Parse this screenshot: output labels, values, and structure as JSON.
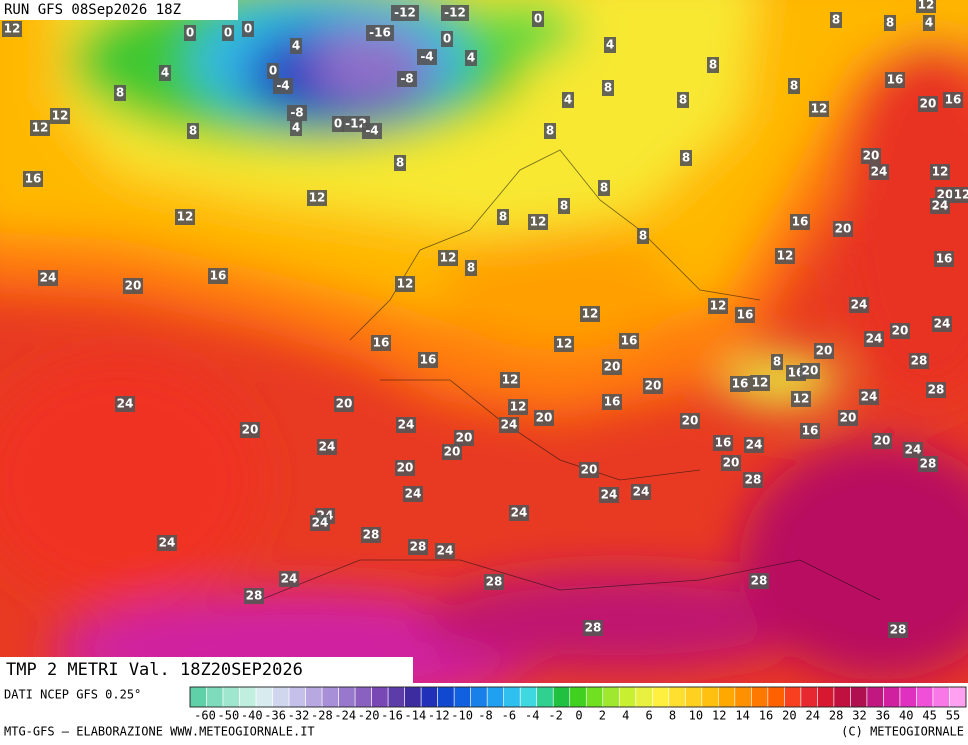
{
  "header": {
    "run": "RUN GFS 08Sep2026 18Z"
  },
  "map": {
    "labels": [
      12,
      0,
      0,
      0,
      4,
      4,
      0,
      -4,
      8,
      12,
      12,
      8,
      -8,
      4,
      0,
      -12,
      -4,
      -12,
      -12,
      -16,
      0,
      -4,
      -8,
      4,
      0,
      4,
      4,
      8,
      8,
      8,
      8,
      8,
      8,
      4,
      12,
      16,
      12,
      20,
      16,
      8,
      8,
      8,
      16,
      20,
      24,
      12,
      20,
      12,
      24,
      12,
      12,
      8,
      8,
      12,
      8,
      8,
      16,
      20,
      12,
      8,
      12,
      16,
      24,
      20,
      16,
      12,
      12,
      12,
      16,
      24,
      20,
      24,
      24,
      16,
      16,
      12,
      16,
      20,
      28,
      8,
      20,
      16,
      12,
      16,
      20,
      12,
      20,
      28,
      24,
      24,
      20,
      12,
      16,
      12,
      20,
      20,
      20,
      24,
      24,
      20,
      16,
      24,
      20,
      20,
      16,
      24,
      20,
      24,
      28,
      20,
      20,
      20,
      28,
      24,
      24,
      24,
      24,
      24,
      24,
      28,
      24,
      28,
      24,
      24,
      28,
      28,
      28,
      28,
      28
    ]
  },
  "footer": {
    "title": "TMP 2 METRI Val. 18Z20SEP2026",
    "source": "DATI NCEP GFS 0.25°",
    "credit": "MTG-GFS — ELABORAZIONE WWW.METEOGIORNALE.IT",
    "copyright": "(C) METEOGIORNALE"
  },
  "legend": {
    "ticks": [
      -60,
      -50,
      -40,
      -36,
      -32,
      -28,
      -24,
      -20,
      -16,
      -14,
      -12,
      -10,
      -8,
      -6,
      -4,
      -2,
      0,
      2,
      4,
      6,
      8,
      10,
      12,
      14,
      16,
      20,
      24,
      28,
      32,
      36,
      40,
      45,
      55
    ],
    "colors": [
      "#5fd0a8",
      "#7edcbc",
      "#9fe6cf",
      "#c0efe0",
      "#d8ecf0",
      "#d0d6ee",
      "#c4c0ea",
      "#b8a8e2",
      "#a890d8",
      "#9878cc",
      "#8a60c0",
      "#7a48b4",
      "#5c3ca8",
      "#3c2ca0",
      "#2030b8",
      "#1048d0",
      "#1060e0",
      "#1880e8",
      "#20a0f0",
      "#30c0f0",
      "#40d8e0",
      "#30d090",
      "#20c040",
      "#40d020",
      "#70e020",
      "#a0e830",
      "#c8f030",
      "#e8f040",
      "#fff040",
      "#ffe030",
      "#ffd020",
      "#ffc010",
      "#ffa800",
      "#ff9000",
      "#ff7800",
      "#ff6000",
      "#f84020",
      "#e82830",
      "#d81830",
      "#c01040",
      "#b01050",
      "#c01880",
      "#d020a0",
      "#e030c0",
      "#f050d8",
      "#f878e8",
      "#ffa0f0"
    ]
  }
}
